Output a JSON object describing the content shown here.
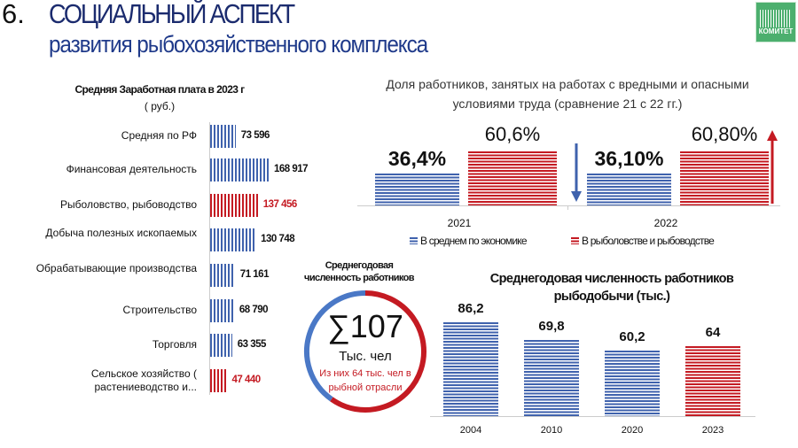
{
  "header": {
    "number": "6.",
    "title_line1": "СОЦИАЛЬНЫЙ АСПЕКТ",
    "title_line2": "развития рыбохозяйственного комплекса",
    "logo_text": "КОМИТЕТ"
  },
  "colors": {
    "blue": "#3f62ad",
    "red": "#c41a22",
    "title": "#1b2b6e"
  },
  "chart_data": [
    {
      "type": "bar",
      "orientation": "horizontal",
      "title": "Средняя Заработная плата  в 2023 г",
      "subtitle": "( руб.)",
      "categories": [
        "Средняя по РФ",
        "Финансовая деятельность",
        "Рыболовство, рыбоводство",
        "Добыча полезных ископаемых",
        "Обрабатывающие производства",
        "Строительство",
        "Торговля",
        "Сельское хозяйство ( растениеводство и..."
      ],
      "values": [
        73596,
        168917,
        137456,
        130748,
        71161,
        68790,
        63355,
        47440
      ],
      "labels": [
        "73 596",
        "168 917",
        "137 456",
        "130 748",
        "71 161",
        "68 790",
        "63 355",
        "47 440"
      ],
      "highlight": [
        false,
        false,
        true,
        false,
        false,
        false,
        false,
        true
      ]
    },
    {
      "type": "bar",
      "title": "Доля работников, занятых на работах с вредными и опасными условиями труда (сравнение 21 с 22 гг.)",
      "categories": [
        "2021",
        "2022"
      ],
      "series": [
        {
          "name": "В среднем по экономике",
          "values": [
            36.4,
            36.1
          ],
          "labels": [
            "36,4%",
            "36,10%"
          ]
        },
        {
          "name": "В рыболовстве и рыбоводстве",
          "values": [
            60.6,
            60.8
          ],
          "labels": [
            "60,6%",
            "60,80%"
          ]
        }
      ],
      "legend": "bottom"
    },
    {
      "type": "pie",
      "title": "Среднегодовая численность работников",
      "total_label": "∑107",
      "unit": "Тыс. чел",
      "note": "Из них 64 тыс. чел в рыбной отрасли",
      "values": [
        43,
        64
      ],
      "series": [
        "other",
        "fishing"
      ]
    },
    {
      "type": "bar",
      "title": "Среднегодовая численность работников рыбодобычи (тыс.)",
      "categories": [
        "2004",
        "2010",
        "2020",
        "2023"
      ],
      "values": [
        86.2,
        69.8,
        60.2,
        64
      ],
      "labels": [
        "86,2",
        "69,8",
        "60,2",
        "64"
      ],
      "highlight": [
        false,
        false,
        false,
        true
      ]
    }
  ]
}
